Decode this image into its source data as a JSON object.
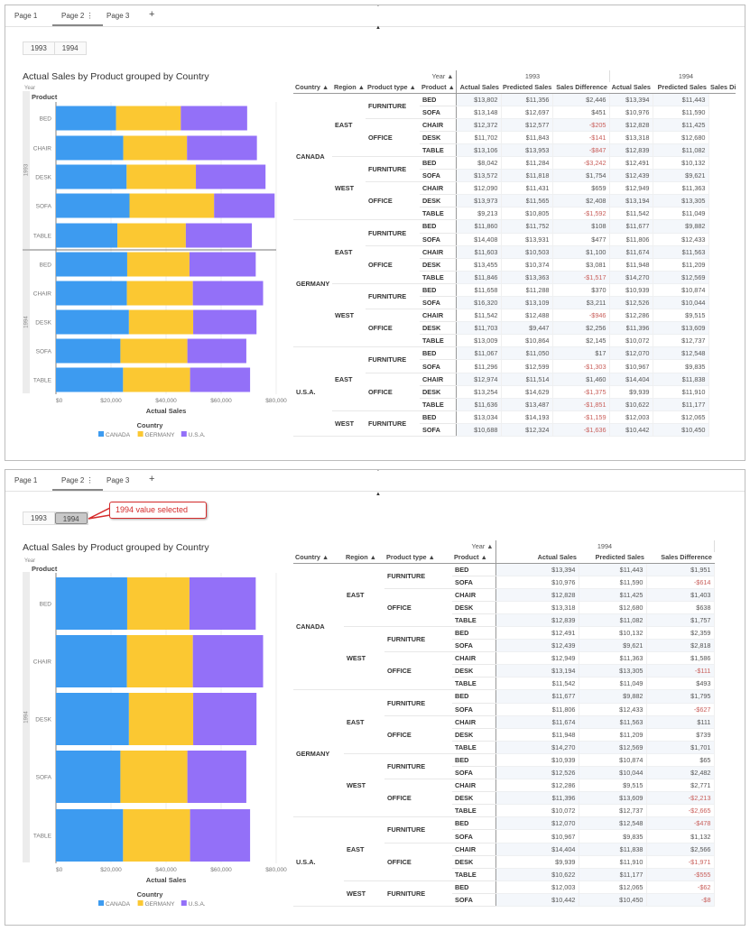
{
  "tabs": [
    "Page 1",
    "Page 2",
    "Page 3"
  ],
  "tab_more_icon": "⋮",
  "tab_add_icon": "+",
  "year_buttons": [
    "1993",
    "1994"
  ],
  "colors": {
    "CANADA": "#3d9bf0",
    "GERMANY": "#fbc832",
    "U.S.A.": "#9370f8",
    "negative": "#c9605c",
    "callout": "#d52b2b"
  },
  "top_panel": {
    "selected_year": null,
    "table": {
      "year_header": "Year ▲",
      "dim_headers": [
        "Country ▲",
        "Region ▲",
        "Product type ▲",
        "Product ▲"
      ],
      "groups": [
        {
          "year": "1993",
          "measures": [
            "Actual Sales",
            "Predicted Sales",
            "Sales Difference"
          ]
        },
        {
          "year": "1994",
          "measures": [
            "Actual Sales",
            "Predicted Sales",
            "Sales Difference"
          ]
        }
      ],
      "rows": [
        [
          [
            "CANADA",
            "EAST",
            "FURNITURE",
            "BED"
          ],
          [
            "$13,802",
            "$11,356",
            "$2,446",
            "$13,394",
            "$11,443"
          ]
        ],
        [
          [
            "CANADA",
            "EAST",
            "FURNITURE",
            "SOFA"
          ],
          [
            "$13,148",
            "$12,697",
            "$451",
            "$10,976",
            "$11,590"
          ]
        ],
        [
          [
            "CANADA",
            "EAST",
            "OFFICE",
            "CHAIR"
          ],
          [
            "$12,372",
            "$12,577",
            "-$205",
            "$12,828",
            "$11,425"
          ]
        ],
        [
          [
            "CANADA",
            "EAST",
            "OFFICE",
            "DESK"
          ],
          [
            "$11,702",
            "$11,843",
            "-$141",
            "$13,318",
            "$12,680"
          ]
        ],
        [
          [
            "CANADA",
            "EAST",
            "OFFICE",
            "TABLE"
          ],
          [
            "$13,106",
            "$13,953",
            "-$847",
            "$12,839",
            "$11,082"
          ]
        ],
        [
          [
            "CANADA",
            "WEST",
            "FURNITURE",
            "BED"
          ],
          [
            "$8,042",
            "$11,284",
            "-$3,242",
            "$12,491",
            "$10,132"
          ]
        ],
        [
          [
            "CANADA",
            "WEST",
            "FURNITURE",
            "SOFA"
          ],
          [
            "$13,572",
            "$11,818",
            "$1,754",
            "$12,439",
            "$9,621"
          ]
        ],
        [
          [
            "CANADA",
            "WEST",
            "OFFICE",
            "CHAIR"
          ],
          [
            "$12,090",
            "$11,431",
            "$659",
            "$12,949",
            "$11,363"
          ]
        ],
        [
          [
            "CANADA",
            "WEST",
            "OFFICE",
            "DESK"
          ],
          [
            "$13,973",
            "$11,565",
            "$2,408",
            "$13,194",
            "$13,305"
          ]
        ],
        [
          [
            "CANADA",
            "WEST",
            "OFFICE",
            "TABLE"
          ],
          [
            "$9,213",
            "$10,805",
            "-$1,592",
            "$11,542",
            "$11,049"
          ]
        ],
        [
          [
            "GERMANY",
            "EAST",
            "FURNITURE",
            "BED"
          ],
          [
            "$11,860",
            "$11,752",
            "$108",
            "$11,677",
            "$9,882"
          ]
        ],
        [
          [
            "GERMANY",
            "EAST",
            "FURNITURE",
            "SOFA"
          ],
          [
            "$14,408",
            "$13,931",
            "$477",
            "$11,806",
            "$12,433"
          ]
        ],
        [
          [
            "GERMANY",
            "EAST",
            "OFFICE",
            "CHAIR"
          ],
          [
            "$11,603",
            "$10,503",
            "$1,100",
            "$11,674",
            "$11,563"
          ]
        ],
        [
          [
            "GERMANY",
            "EAST",
            "OFFICE",
            "DESK"
          ],
          [
            "$13,455",
            "$10,374",
            "$3,081",
            "$11,948",
            "$11,209"
          ]
        ],
        [
          [
            "GERMANY",
            "EAST",
            "OFFICE",
            "TABLE"
          ],
          [
            "$11,846",
            "$13,363",
            "-$1,517",
            "$14,270",
            "$12,569"
          ]
        ],
        [
          [
            "GERMANY",
            "WEST",
            "FURNITURE",
            "BED"
          ],
          [
            "$11,658",
            "$11,288",
            "$370",
            "$10,939",
            "$10,874"
          ]
        ],
        [
          [
            "GERMANY",
            "WEST",
            "FURNITURE",
            "SOFA"
          ],
          [
            "$16,320",
            "$13,109",
            "$3,211",
            "$12,526",
            "$10,044"
          ]
        ],
        [
          [
            "GERMANY",
            "WEST",
            "OFFICE",
            "CHAIR"
          ],
          [
            "$11,542",
            "$12,488",
            "-$946",
            "$12,286",
            "$9,515"
          ]
        ],
        [
          [
            "GERMANY",
            "WEST",
            "OFFICE",
            "DESK"
          ],
          [
            "$11,703",
            "$9,447",
            "$2,256",
            "$11,396",
            "$13,609"
          ]
        ],
        [
          [
            "GERMANY",
            "WEST",
            "OFFICE",
            "TABLE"
          ],
          [
            "$13,009",
            "$10,864",
            "$2,145",
            "$10,072",
            "$12,737"
          ]
        ],
        [
          [
            "U.S.A.",
            "EAST",
            "FURNITURE",
            "BED"
          ],
          [
            "$11,067",
            "$11,050",
            "$17",
            "$12,070",
            "$12,548"
          ]
        ],
        [
          [
            "U.S.A.",
            "EAST",
            "FURNITURE",
            "SOFA"
          ],
          [
            "$11,296",
            "$12,599",
            "-$1,303",
            "$10,967",
            "$9,835"
          ]
        ],
        [
          [
            "U.S.A.",
            "EAST",
            "OFFICE",
            "CHAIR"
          ],
          [
            "$12,974",
            "$11,514",
            "$1,460",
            "$14,404",
            "$11,838"
          ]
        ],
        [
          [
            "U.S.A.",
            "EAST",
            "OFFICE",
            "DESK"
          ],
          [
            "$13,254",
            "$14,629",
            "-$1,375",
            "$9,939",
            "$11,910"
          ]
        ],
        [
          [
            "U.S.A.",
            "EAST",
            "OFFICE",
            "TABLE"
          ],
          [
            "$11,636",
            "$13,487",
            "-$1,851",
            "$10,622",
            "$11,177"
          ]
        ],
        [
          [
            "U.S.A.",
            "WEST",
            "FURNITURE",
            "BED"
          ],
          [
            "$13,034",
            "$14,193",
            "-$1,159",
            "$12,003",
            "$12,065"
          ]
        ],
        [
          [
            "U.S.A.",
            "WEST",
            "FURNITURE",
            "SOFA"
          ],
          [
            "$10,688",
            "$12,324",
            "-$1,636",
            "$10,442",
            "$10,450"
          ]
        ]
      ]
    }
  },
  "bottom_panel": {
    "selected_year": "1994",
    "callout": "1994 value selected",
    "table": {
      "year_header": "Year ▲",
      "dim_headers": [
        "Country ▲",
        "Region ▲",
        "Product type ▲",
        "Product ▲"
      ],
      "groups": [
        {
          "year": "1994",
          "measures": [
            "Actual Sales",
            "Predicted Sales",
            "Sales Difference"
          ]
        }
      ],
      "rows": [
        [
          [
            "CANADA",
            "EAST",
            "FURNITURE",
            "BED"
          ],
          [
            "$13,394",
            "$11,443",
            "$1,951"
          ]
        ],
        [
          [
            "CANADA",
            "EAST",
            "FURNITURE",
            "SOFA"
          ],
          [
            "$10,976",
            "$11,590",
            "-$614"
          ]
        ],
        [
          [
            "CANADA",
            "EAST",
            "OFFICE",
            "CHAIR"
          ],
          [
            "$12,828",
            "$11,425",
            "$1,403"
          ]
        ],
        [
          [
            "CANADA",
            "EAST",
            "OFFICE",
            "DESK"
          ],
          [
            "$13,318",
            "$12,680",
            "$638"
          ]
        ],
        [
          [
            "CANADA",
            "EAST",
            "OFFICE",
            "TABLE"
          ],
          [
            "$12,839",
            "$11,082",
            "$1,757"
          ]
        ],
        [
          [
            "CANADA",
            "WEST",
            "FURNITURE",
            "BED"
          ],
          [
            "$12,491",
            "$10,132",
            "$2,359"
          ]
        ],
        [
          [
            "CANADA",
            "WEST",
            "FURNITURE",
            "SOFA"
          ],
          [
            "$12,439",
            "$9,621",
            "$2,818"
          ]
        ],
        [
          [
            "CANADA",
            "WEST",
            "OFFICE",
            "CHAIR"
          ],
          [
            "$12,949",
            "$11,363",
            "$1,586"
          ]
        ],
        [
          [
            "CANADA",
            "WEST",
            "OFFICE",
            "DESK"
          ],
          [
            "$13,194",
            "$13,305",
            "-$111"
          ]
        ],
        [
          [
            "CANADA",
            "WEST",
            "OFFICE",
            "TABLE"
          ],
          [
            "$11,542",
            "$11,049",
            "$493"
          ]
        ],
        [
          [
            "GERMANY",
            "EAST",
            "FURNITURE",
            "BED"
          ],
          [
            "$11,677",
            "$9,882",
            "$1,795"
          ]
        ],
        [
          [
            "GERMANY",
            "EAST",
            "FURNITURE",
            "SOFA"
          ],
          [
            "$11,806",
            "$12,433",
            "-$627"
          ]
        ],
        [
          [
            "GERMANY",
            "EAST",
            "OFFICE",
            "CHAIR"
          ],
          [
            "$11,674",
            "$11,563",
            "$111"
          ]
        ],
        [
          [
            "GERMANY",
            "EAST",
            "OFFICE",
            "DESK"
          ],
          [
            "$11,948",
            "$11,209",
            "$739"
          ]
        ],
        [
          [
            "GERMANY",
            "EAST",
            "OFFICE",
            "TABLE"
          ],
          [
            "$14,270",
            "$12,569",
            "$1,701"
          ]
        ],
        [
          [
            "GERMANY",
            "WEST",
            "FURNITURE",
            "BED"
          ],
          [
            "$10,939",
            "$10,874",
            "$65"
          ]
        ],
        [
          [
            "GERMANY",
            "WEST",
            "FURNITURE",
            "SOFA"
          ],
          [
            "$12,526",
            "$10,044",
            "$2,482"
          ]
        ],
        [
          [
            "GERMANY",
            "WEST",
            "OFFICE",
            "CHAIR"
          ],
          [
            "$12,286",
            "$9,515",
            "$2,771"
          ]
        ],
        [
          [
            "GERMANY",
            "WEST",
            "OFFICE",
            "DESK"
          ],
          [
            "$11,396",
            "$13,609",
            "-$2,213"
          ]
        ],
        [
          [
            "GERMANY",
            "WEST",
            "OFFICE",
            "TABLE"
          ],
          [
            "$10,072",
            "$12,737",
            "-$2,665"
          ]
        ],
        [
          [
            "U.S.A.",
            "EAST",
            "FURNITURE",
            "BED"
          ],
          [
            "$12,070",
            "$12,548",
            "-$478"
          ]
        ],
        [
          [
            "U.S.A.",
            "EAST",
            "FURNITURE",
            "SOFA"
          ],
          [
            "$10,967",
            "$9,835",
            "$1,132"
          ]
        ],
        [
          [
            "U.S.A.",
            "EAST",
            "OFFICE",
            "CHAIR"
          ],
          [
            "$14,404",
            "$11,838",
            "$2,566"
          ]
        ],
        [
          [
            "U.S.A.",
            "EAST",
            "OFFICE",
            "DESK"
          ],
          [
            "$9,939",
            "$11,910",
            "-$1,971"
          ]
        ],
        [
          [
            "U.S.A.",
            "EAST",
            "OFFICE",
            "TABLE"
          ],
          [
            "$10,622",
            "$11,177",
            "-$555"
          ]
        ],
        [
          [
            "U.S.A.",
            "WEST",
            "FURNITURE",
            "BED"
          ],
          [
            "$12,003",
            "$12,065",
            "-$62"
          ]
        ],
        [
          [
            "U.S.A.",
            "WEST",
            "FURNITURE",
            "SOFA"
          ],
          [
            "$10,442",
            "$10,450",
            "-$8"
          ]
        ]
      ]
    }
  },
  "chart_data": [
    {
      "type": "bar",
      "orientation": "horizontal",
      "stacked": true,
      "title": "Actual Sales by Product grouped by Country",
      "group_label": "Year",
      "ylabel": "Product",
      "xlabel": "Actual Sales",
      "legend_title": "Country",
      "legend_position": "bottom",
      "xlim": [
        0,
        80000
      ],
      "xticks": [
        "$0",
        "$20,000",
        "$40,000",
        "$60,000",
        "$80,000"
      ],
      "groups": [
        {
          "year": "1993",
          "categories": [
            "BED",
            "CHAIR",
            "DESK",
            "SOFA",
            "TABLE"
          ],
          "series": [
            {
              "name": "CANADA",
              "values": [
                21844,
                24462,
                25675,
                26720,
                22319
              ]
            },
            {
              "name": "GERMANY",
              "values": [
                23518,
                23145,
                25158,
                30728,
                24855
              ]
            },
            {
              "name": "U.S.A.",
              "values": [
                24101,
                25394,
                25300,
                21984,
                24000
              ]
            }
          ]
        },
        {
          "year": "1994",
          "categories": [
            "BED",
            "CHAIR",
            "DESK",
            "SOFA",
            "TABLE"
          ],
          "series": [
            {
              "name": "CANADA",
              "values": [
                25885,
                25777,
                26512,
                23415,
                24381
              ]
            },
            {
              "name": "GERMANY",
              "values": [
                22616,
                23960,
                23344,
                24332,
                24342
              ]
            },
            {
              "name": "U.S.A.",
              "values": [
                24073,
                25514,
                23000,
                21409,
                21800
              ]
            }
          ]
        }
      ]
    },
    {
      "type": "bar",
      "orientation": "horizontal",
      "stacked": true,
      "title": "Actual Sales by Product grouped by Country",
      "group_label": "Year",
      "ylabel": "Product",
      "xlabel": "Actual Sales",
      "legend_title": "Country",
      "legend_position": "bottom",
      "xlim": [
        0,
        80000
      ],
      "xticks": [
        "$0",
        "$20,000",
        "$40,000",
        "$60,000",
        "$80,000"
      ],
      "groups": [
        {
          "year": "1994",
          "categories": [
            "BED",
            "CHAIR",
            "DESK",
            "SOFA",
            "TABLE"
          ],
          "series": [
            {
              "name": "CANADA",
              "values": [
                25885,
                25777,
                26512,
                23415,
                24381
              ]
            },
            {
              "name": "GERMANY",
              "values": [
                22616,
                23960,
                23344,
                24332,
                24342
              ]
            },
            {
              "name": "U.S.A.",
              "values": [
                24073,
                25514,
                23000,
                21409,
                21800
              ]
            }
          ]
        }
      ]
    }
  ]
}
